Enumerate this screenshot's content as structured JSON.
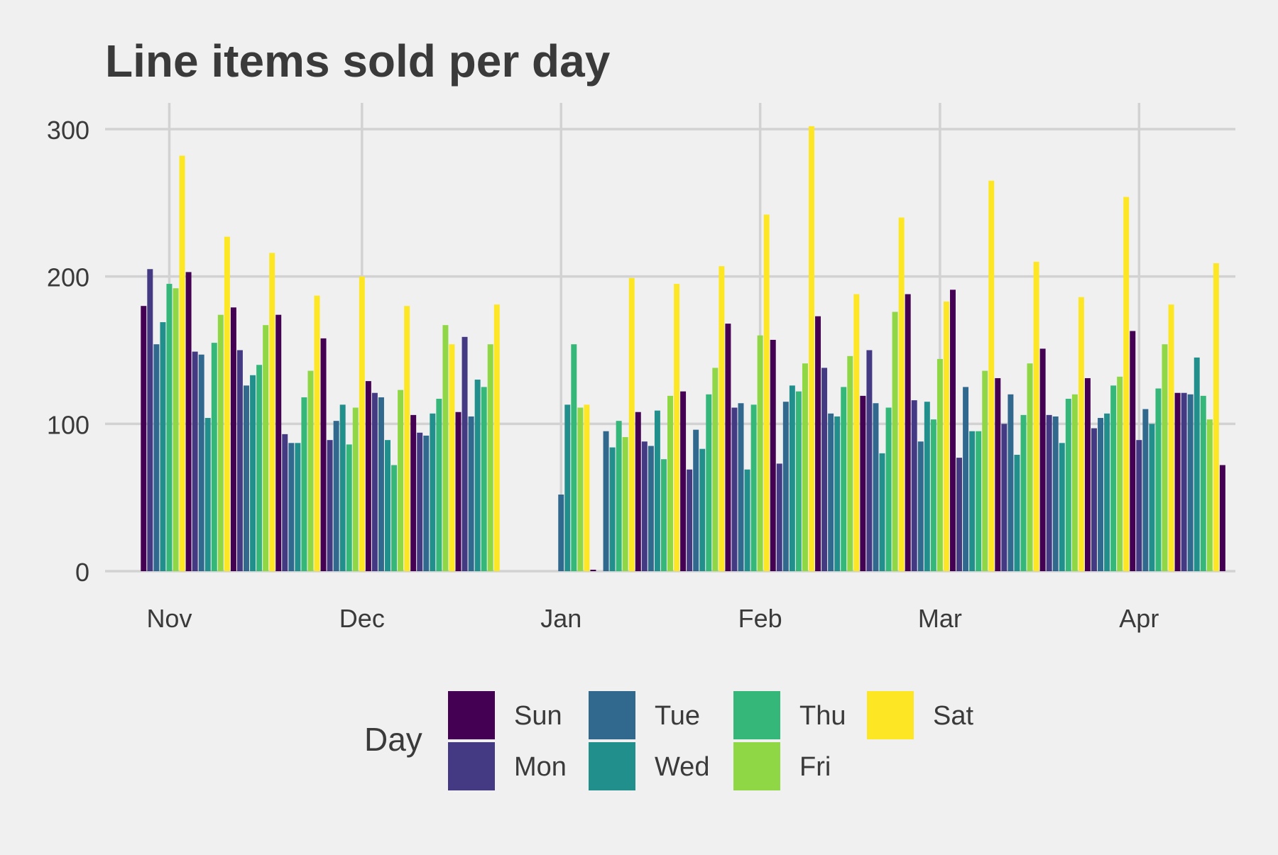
{
  "chart_data": {
    "type": "bar",
    "title": "Line items sold per day",
    "xlabel": "",
    "ylabel": "",
    "ylim": [
      0,
      320
    ],
    "y_ticks": [
      0,
      100,
      200,
      300
    ],
    "x_ticks": [
      {
        "date": "2018-11-01",
        "label": "Nov"
      },
      {
        "date": "2018-12-01",
        "label": "Dec"
      },
      {
        "date": "2019-01-01",
        "label": "Jan"
      },
      {
        "date": "2019-02-01",
        "label": "Feb"
      },
      {
        "date": "2019-03-01",
        "label": "Mar"
      },
      {
        "date": "2019-04-01",
        "label": "Apr"
      }
    ],
    "x_range": [
      "2018-10-22",
      "2019-04-16"
    ],
    "grid": true,
    "legend": {
      "title": "Day",
      "position": "bottom",
      "entries": [
        {
          "label": "Sun",
          "color": "#440154"
        },
        {
          "label": "Mon",
          "color": "#443a83"
        },
        {
          "label": "Tue",
          "color": "#31688e"
        },
        {
          "label": "Wed",
          "color": "#21908d"
        },
        {
          "label": "Thu",
          "color": "#35b779"
        },
        {
          "label": "Fri",
          "color": "#8fd744"
        },
        {
          "label": "Sat",
          "color": "#fde725"
        }
      ]
    },
    "start_date": "2018-10-28",
    "values": [
      180,
      205,
      154,
      169,
      195,
      192,
      282,
      203,
      149,
      147,
      104,
      155,
      174,
      227,
      179,
      150,
      126,
      133,
      140,
      167,
      216,
      174,
      93,
      87,
      87,
      118,
      136,
      187,
      158,
      89,
      102,
      113,
      86,
      111,
      200,
      129,
      121,
      118,
      89,
      72,
      123,
      180,
      106,
      94,
      92,
      107,
      117,
      167,
      154,
      108,
      159,
      105,
      130,
      125,
      154,
      181,
      0,
      0,
      0,
      0,
      0,
      0,
      0,
      0,
      0,
      52,
      113,
      154,
      111,
      113,
      1,
      0,
      95,
      84,
      102,
      91,
      199,
      108,
      88,
      85,
      109,
      76,
      119,
      195,
      122,
      69,
      96,
      83,
      120,
      138,
      207,
      168,
      111,
      114,
      69,
      113,
      160,
      242,
      157,
      73,
      115,
      126,
      122,
      141,
      302,
      173,
      138,
      107,
      105,
      125,
      146,
      188,
      119,
      150,
      114,
      80,
      111,
      176,
      240,
      188,
      116,
      88,
      115,
      103,
      144,
      183,
      191,
      77,
      125,
      95,
      95,
      136,
      265,
      131,
      100,
      120,
      79,
      106,
      141,
      210,
      151,
      106,
      105,
      87,
      117,
      120,
      186,
      131,
      97,
      104,
      107,
      126,
      132,
      254,
      163,
      89,
      110,
      100,
      124,
      154,
      181,
      121,
      121,
      120,
      145,
      119,
      103,
      209,
      72
    ]
  }
}
